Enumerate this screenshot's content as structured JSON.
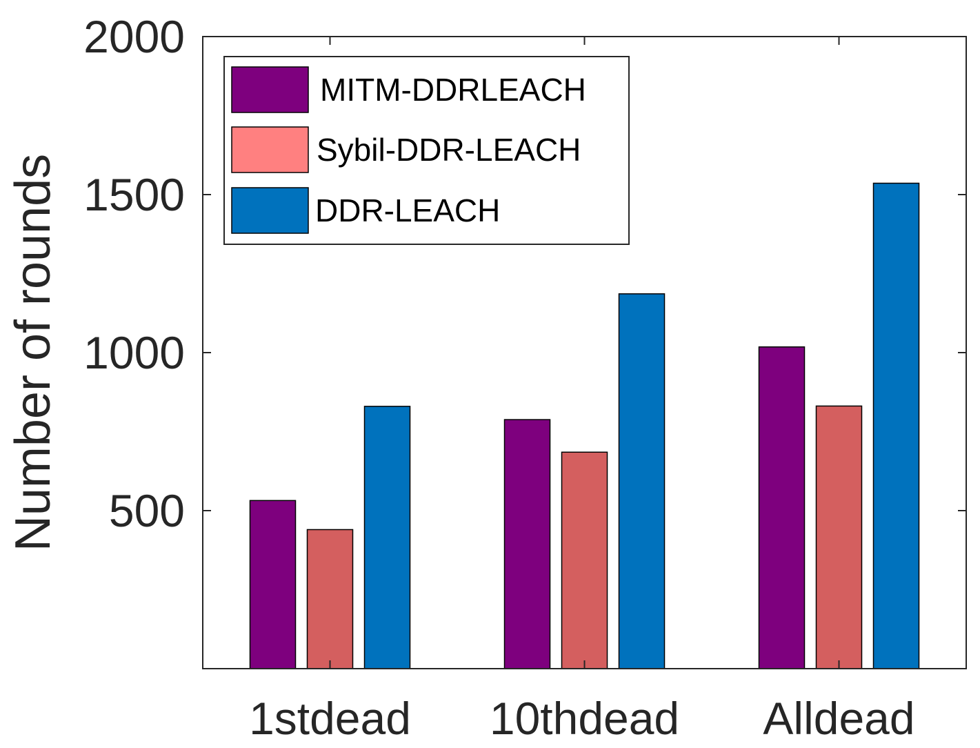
{
  "chart_data": {
    "type": "bar",
    "title": "",
    "xlabel": "",
    "ylabel": "Number of rounds",
    "categories": [
      "1stdead",
      "10thdead",
      "Alldead"
    ],
    "series": [
      {
        "name": "MITM-DDRLEACH",
        "values": [
          532,
          788,
          1018
        ],
        "color": "#7E007E"
      },
      {
        "name": "Sybil-DDR-LEACH",
        "values": [
          440,
          685,
          831
        ],
        "color": "#D45F5F"
      },
      {
        "name": "DDR-LEACH",
        "values": [
          830,
          1186,
          1536
        ],
        "color": "#0072BD"
      }
    ],
    "legend_swatch_colors": [
      "#7E007E",
      "#FF8080",
      "#0072BD"
    ],
    "ylim": [
      0,
      2000
    ],
    "yticks": [
      500,
      1000,
      1500,
      2000
    ],
    "ytick_labels": [
      "500",
      "1000",
      "1500",
      "2000"
    ],
    "grid": false,
    "legend_position": "top-left"
  }
}
